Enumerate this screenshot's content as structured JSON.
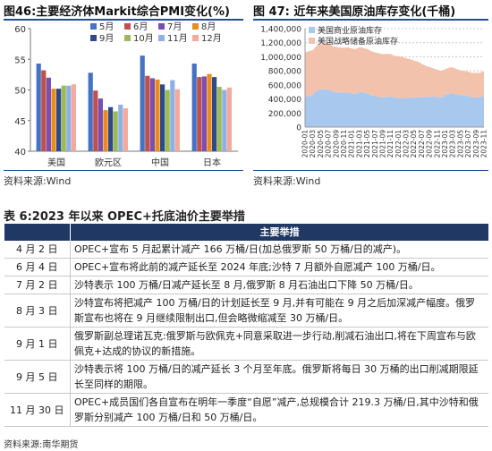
{
  "chart1": {
    "title": "图46:主要经济体Markit综合PMI变化(%)",
    "source": "资料来源:Wind",
    "chart_data": {
      "type": "bar",
      "categories": [
        "美国",
        "欧元区",
        "中国",
        "日本"
      ],
      "series": [
        {
          "name": "5月",
          "values": [
            54.3,
            52.8,
            55.6,
            54.3
          ]
        },
        {
          "name": "6月",
          "values": [
            53.2,
            49.9,
            52.3,
            52.1
          ]
        },
        {
          "name": "7月",
          "values": [
            52.0,
            48.6,
            51.9,
            52.2
          ]
        },
        {
          "name": "8月",
          "values": [
            50.2,
            46.7,
            51.7,
            52.6
          ]
        },
        {
          "name": "9月",
          "values": [
            50.2,
            47.2,
            50.9,
            52.1
          ]
        },
        {
          "name": "10月",
          "values": [
            50.7,
            46.5,
            50.0,
            50.5
          ]
        },
        {
          "name": "11月",
          "values": [
            50.7,
            47.6,
            51.6,
            50.0
          ]
        },
        {
          "name": "12月",
          "values": [
            50.9,
            47.0,
            50.1,
            50.4
          ]
        }
      ],
      "colors": [
        "#4472c4",
        "#c0504d",
        "#7a4fb3",
        "#e88c1e",
        "#2e4a8b",
        "#9bbb59",
        "#8fb0e3",
        "#f4a99a"
      ],
      "ylim": [
        40,
        60
      ],
      "yticks": [
        40,
        45,
        50,
        55,
        60
      ],
      "grid": false,
      "legend": "top-right"
    }
  },
  "chart2": {
    "title": "图 47: 近年来美国原油库存变化(千桶)",
    "source": "资料来源:Wind",
    "chart_data": {
      "type": "area",
      "stacked": true,
      "x": [
        "2020-01",
        "2020-02",
        "2020-03",
        "2020-04",
        "2020-05",
        "2020-06",
        "2020-07",
        "2020-08",
        "2020-09",
        "2020-10",
        "2020-11",
        "2020-12",
        "2021-01",
        "2021-02",
        "2021-03",
        "2021-04",
        "2021-05",
        "2021-06",
        "2021-07",
        "2021-08",
        "2021-09",
        "2021-10",
        "2021-11",
        "2021-12",
        "2022-01",
        "2022-02",
        "2022-03",
        "2022-04",
        "2022-05",
        "2022-06",
        "2022-07",
        "2022-08",
        "2022-09",
        "2022-10",
        "2022-11",
        "2022-12",
        "2023-01",
        "2023-02",
        "2023-03",
        "2023-04",
        "2023-05",
        "2023-06",
        "2023-07",
        "2023-08",
        "2023-09",
        "2023-10",
        "2023-11"
      ],
      "xtick_labels": [
        "2020-01",
        "2020-03",
        "2020-05",
        "2020-07",
        "2020-09",
        "2020-11",
        "2021-01",
        "2021-03",
        "2021-05",
        "2021-07",
        "2021-09",
        "2021-11",
        "2022-01",
        "2022-03",
        "2022-05",
        "2022-07",
        "2022-09",
        "2022-11",
        "2023-01",
        "2023-03",
        "2023-05",
        "2023-07",
        "2023-09",
        "2023-11"
      ],
      "series": [
        {
          "name": "美国商业原油库存",
          "values": [
            430000,
            445000,
            460000,
            520000,
            530000,
            540000,
            535000,
            505000,
            495000,
            490000,
            490000,
            495000,
            480000,
            470000,
            500000,
            490000,
            480000,
            455000,
            440000,
            430000,
            420000,
            430000,
            435000,
            420000,
            415000,
            412000,
            410000,
            415000,
            420000,
            425000,
            430000,
            425000,
            430000,
            435000,
            430000,
            420000,
            450000,
            475000,
            478000,
            460000,
            455000,
            452000,
            440000,
            420000,
            420000,
            420000,
            445000
          ]
        },
        {
          "name": "美国战略储备原油库存",
          "values": [
            635000,
            635000,
            635000,
            640000,
            648000,
            655000,
            656000,
            650000,
            645000,
            640000,
            640000,
            640000,
            638000,
            637000,
            637000,
            635000,
            632000,
            625000,
            621000,
            620000,
            618000,
            612000,
            605000,
            594000,
            590000,
            585000,
            568000,
            550000,
            528000,
            505000,
            470000,
            445000,
            425000,
            400000,
            390000,
            375000,
            372000,
            371000,
            372000,
            364000,
            352000,
            347000,
            346000,
            350000,
            351000,
            352000,
            353000
          ]
        }
      ],
      "colors": [
        "#a9c8ee",
        "#f2c2ad"
      ],
      "ylim": [
        0,
        1400000
      ],
      "yticks": [
        0,
        200000,
        400000,
        600000,
        800000,
        1000000,
        1200000,
        1400000
      ],
      "ytick_labels": [
        "0",
        "200,000",
        "400,000",
        "600,000",
        "800,000",
        "1,000,000",
        "1,200,000",
        "1,400,000"
      ],
      "grid": true,
      "legend": "top-left"
    }
  },
  "table": {
    "title": "表 6:2023 年以来 OPEC+托底油价主要举措",
    "header": "主要举措",
    "rows": [
      {
        "date": "4 月 2 日",
        "text": "OPEC+宣布 5 月起累计减产 166 万桶/日(加总俄罗斯 50 万桶/日的减产)。"
      },
      {
        "date": "6 月 4 日",
        "text": "OPEC+宣布将此前的减产延长至 2024 年底;沙特 7 月额外自愿减产 100 万桶/日。"
      },
      {
        "date": "7 月 2 日",
        "text": "沙特表示 100 万桶/日减产延长至 8 月,俄罗斯 8 月石油出口下降 50 万桶/日。"
      },
      {
        "date": "8 月 3 日",
        "text": "沙特宣布将把减产 100 万桶/日的计划延长至 9 月,并有可能在 9 月之后加深减产幅度。俄罗斯宣布也将在 9 月继续限制出口,但会略微缩减至 30 万桶/日。"
      },
      {
        "date": "9 月 1 日",
        "text": "俄罗斯副总理诺瓦克:俄罗斯与欧佩克+同意采取进一步行动,削减石油出口,将在下周宣布与欧佩克+达成的协议的新措施。"
      },
      {
        "date": "9 月 5 日",
        "text": "沙特表示将 100 万桶/日的减产延长 3 个月至年底。俄罗斯将每日 30 万桶的出口削减期限延长至同样的期限。"
      },
      {
        "date": "11 月 30 日",
        "text": "OPEC+成员国们各自宣布在明年一季度“自愿”减产,总规模合计 219.3 万桶/日,其中沙特和俄罗斯分别减产 100 万桶/日和 50 万桶/日。"
      }
    ],
    "source": "资料来源:南华期货"
  }
}
